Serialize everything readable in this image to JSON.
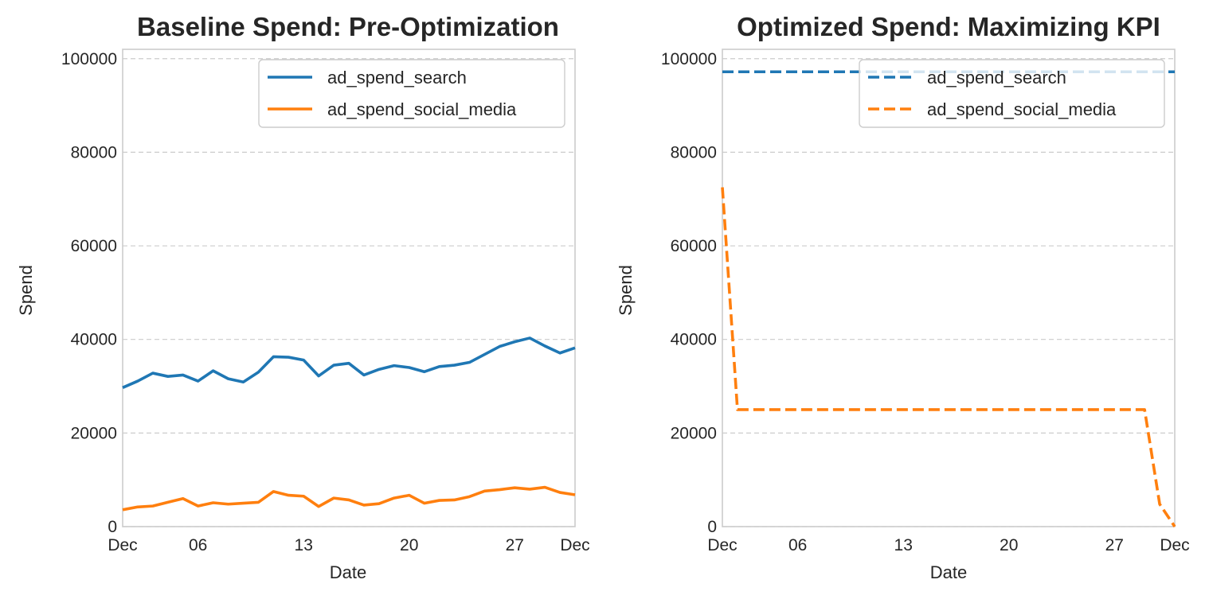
{
  "chart_data": [
    {
      "type": "line",
      "title": "Baseline Spend: Pre-Optimization",
      "xlabel": "Date",
      "ylabel": "Spend",
      "x": [
        "Dec 01",
        "Dec 02",
        "Dec 03",
        "Dec 04",
        "Dec 05",
        "Dec 06",
        "Dec 07",
        "Dec 08",
        "Dec 09",
        "Dec 10",
        "Dec 11",
        "Dec 12",
        "Dec 13",
        "Dec 14",
        "Dec 15",
        "Dec 16",
        "Dec 17",
        "Dec 18",
        "Dec 19",
        "Dec 20",
        "Dec 21",
        "Dec 22",
        "Dec 23",
        "Dec 24",
        "Dec 25",
        "Dec 26",
        "Dec 27",
        "Dec 28",
        "Dec 29",
        "Dec 30",
        "Dec 31"
      ],
      "x_ticks": [
        {
          "date": "Dec 01",
          "label": "Dec"
        },
        {
          "date": "Dec 06",
          "label": "06"
        },
        {
          "date": "Dec 13",
          "label": "13"
        },
        {
          "date": "Dec 20",
          "label": "20"
        },
        {
          "date": "Dec 27",
          "label": "27"
        },
        {
          "date": "Dec 31",
          "label": "Dec"
        }
      ],
      "ylim": [
        0,
        102000
      ],
      "y_ticks": [
        "0",
        "20000",
        "40000",
        "60000",
        "80000",
        "100000"
      ],
      "grid": true,
      "legend_position": "top-right",
      "series": [
        {
          "name": "ad_spend_search",
          "color": "#1f77b4",
          "style": "solid",
          "values": [
            29700,
            31100,
            32800,
            32100,
            32400,
            31100,
            33300,
            31600,
            30900,
            33000,
            36300,
            36200,
            35600,
            32200,
            34500,
            34900,
            32400,
            33600,
            34400,
            34000,
            33100,
            34200,
            34500,
            35100,
            36800,
            38500,
            39500,
            40300,
            38600,
            37100,
            38200
          ]
        },
        {
          "name": "ad_spend_social_media",
          "color": "#ff7f0e",
          "style": "solid",
          "values": [
            3600,
            4200,
            4400,
            5200,
            6000,
            4400,
            5100,
            4800,
            5000,
            5200,
            7500,
            6700,
            6500,
            4300,
            6100,
            5700,
            4600,
            4900,
            6100,
            6700,
            5000,
            5600,
            5700,
            6400,
            7600,
            7900,
            8300,
            8000,
            8400,
            7300,
            6800
          ]
        }
      ]
    },
    {
      "type": "line",
      "title": "Optimized Spend: Maximizing KPI",
      "xlabel": "Date",
      "ylabel": "Spend",
      "x": [
        "Dec 01",
        "Dec 02",
        "Dec 03",
        "Dec 04",
        "Dec 05",
        "Dec 06",
        "Dec 07",
        "Dec 08",
        "Dec 09",
        "Dec 10",
        "Dec 11",
        "Dec 12",
        "Dec 13",
        "Dec 14",
        "Dec 15",
        "Dec 16",
        "Dec 17",
        "Dec 18",
        "Dec 19",
        "Dec 20",
        "Dec 21",
        "Dec 22",
        "Dec 23",
        "Dec 24",
        "Dec 25",
        "Dec 26",
        "Dec 27",
        "Dec 28",
        "Dec 29",
        "Dec 30",
        "Dec 31"
      ],
      "x_ticks": [
        {
          "date": "Dec 01",
          "label": "Dec"
        },
        {
          "date": "Dec 06",
          "label": "06"
        },
        {
          "date": "Dec 13",
          "label": "13"
        },
        {
          "date": "Dec 20",
          "label": "20"
        },
        {
          "date": "Dec 27",
          "label": "27"
        },
        {
          "date": "Dec 31",
          "label": "Dec"
        }
      ],
      "ylim": [
        0,
        102000
      ],
      "y_ticks": [
        "0",
        "20000",
        "40000",
        "60000",
        "80000",
        "100000"
      ],
      "grid": true,
      "legend_position": "top-right",
      "series": [
        {
          "name": "ad_spend_search",
          "color": "#1f77b4",
          "style": "dashed",
          "values": [
            97200,
            97200,
            97200,
            97200,
            97200,
            97200,
            97200,
            97200,
            97200,
            97200,
            97200,
            97200,
            97200,
            97200,
            97200,
            97200,
            97200,
            97200,
            97200,
            97200,
            97200,
            97200,
            97200,
            97200,
            97200,
            97200,
            97200,
            97200,
            97200,
            97200,
            97200
          ]
        },
        {
          "name": "ad_spend_social_media",
          "color": "#ff7f0e",
          "style": "dashed",
          "values": [
            72500,
            25000,
            25000,
            25000,
            25000,
            25000,
            25000,
            25000,
            25000,
            25000,
            25000,
            25000,
            25000,
            25000,
            25000,
            25000,
            25000,
            25000,
            25000,
            25000,
            25000,
            25000,
            25000,
            25000,
            25000,
            25000,
            25000,
            25000,
            25000,
            4800,
            0
          ]
        }
      ]
    }
  ]
}
